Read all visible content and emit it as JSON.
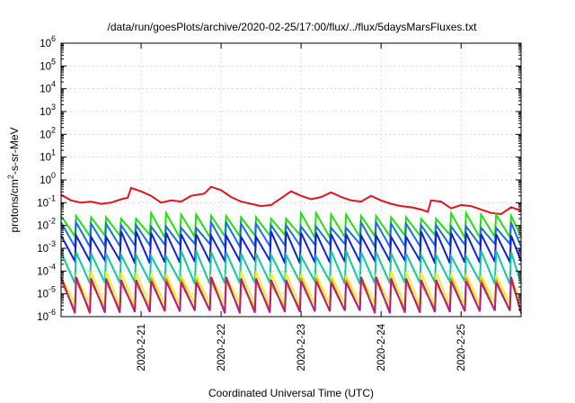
{
  "chart_data": {
    "type": "line",
    "title": "/data/run/goesPlots/archive/2020-02-25/17:00/flux/../flux/5daysMarsFluxes.txt",
    "xlabel": "Coordinated Universal Time (UTC)",
    "ylabel_parts": [
      "protons/cm",
      "2",
      "-s-sr-MeV"
    ],
    "y_scale": "log",
    "ylim": [
      1e-06,
      1000000.0
    ],
    "y_ticks": [
      {
        "base": "10",
        "exp": "-6"
      },
      {
        "base": "10",
        "exp": "-5"
      },
      {
        "base": "10",
        "exp": "-4"
      },
      {
        "base": "10",
        "exp": "-3"
      },
      {
        "base": "10",
        "exp": "-2"
      },
      {
        "base": "10",
        "exp": "-1"
      },
      {
        "base": "10",
        "exp": "0"
      },
      {
        "base": "10",
        "exp": "1"
      },
      {
        "base": "10",
        "exp": "2"
      },
      {
        "base": "10",
        "exp": "3"
      },
      {
        "base": "10",
        "exp": "4"
      },
      {
        "base": "10",
        "exp": "5"
      },
      {
        "base": "10",
        "exp": "6"
      }
    ],
    "x_range_days": [
      "2020-02-20T00:00",
      "2020-02-25T18:00"
    ],
    "x_ticks": [
      "2020-2-21",
      "2020-2-22",
      "2020-2-23",
      "2020-2-24",
      "2020-2-25"
    ],
    "grid": true,
    "legend": "none",
    "series": [
      {
        "color": "#e8101a",
        "sawtooth_period_h": 12,
        "x_start_h": 0,
        "points": [
          [
            0,
            -0.65
          ],
          [
            3,
            -0.9
          ],
          [
            6,
            -1.0
          ],
          [
            9,
            -0.95
          ],
          [
            12,
            -1.05
          ],
          [
            15,
            -1.0
          ],
          [
            18,
            -0.85
          ],
          [
            20,
            -0.78
          ],
          [
            21,
            -0.35
          ],
          [
            24,
            -0.5
          ],
          [
            27,
            -0.7
          ],
          [
            30,
            -1.0
          ],
          [
            33,
            -0.9
          ],
          [
            36,
            -0.95
          ],
          [
            39,
            -0.7
          ],
          [
            43,
            -0.6
          ],
          [
            45,
            -0.3
          ],
          [
            48,
            -0.45
          ],
          [
            51,
            -0.75
          ],
          [
            54,
            -0.95
          ],
          [
            57,
            -1.05
          ],
          [
            60,
            -1.15
          ],
          [
            63,
            -1.1
          ],
          [
            66,
            -0.8
          ],
          [
            69,
            -0.5
          ],
          [
            72,
            -0.7
          ],
          [
            75,
            -0.85
          ],
          [
            78,
            -0.75
          ],
          [
            81,
            -0.55
          ],
          [
            84,
            -0.75
          ],
          [
            87,
            -0.9
          ],
          [
            90,
            -0.95
          ],
          [
            93,
            -0.7
          ],
          [
            96,
            -0.9
          ],
          [
            99,
            -1.05
          ],
          [
            102,
            -1.15
          ],
          [
            105,
            -1.2
          ],
          [
            108,
            -1.3
          ],
          [
            110,
            -1.4
          ],
          [
            111,
            -0.9
          ],
          [
            114,
            -0.95
          ],
          [
            117,
            -1.25
          ],
          [
            120,
            -1.1
          ],
          [
            123,
            -1.15
          ],
          [
            126,
            -1.3
          ],
          [
            129,
            -1.45
          ],
          [
            132,
            -1.5
          ],
          [
            135,
            -1.2
          ],
          [
            138,
            -1.35
          ]
        ]
      },
      {
        "color": "#22e010",
        "base": -2.25,
        "amp": 0.55,
        "period_h": 4.5
      },
      {
        "color": "#1a6ee0",
        "base": -2.65,
        "amp": 0.55,
        "period_h": 4.5
      },
      {
        "color": "#1020d8",
        "base": -3.3,
        "amp": 0.8,
        "period_h": 4.5
      },
      {
        "color": "#10c8a0",
        "base": -4.2,
        "amp": 0.85,
        "period_h": 4.5
      },
      {
        "color": "#f0f020",
        "base": -5.15,
        "amp": 0.9,
        "period_h": 4.5
      },
      {
        "color": "#e89018",
        "base": -5.4,
        "amp": 0.85,
        "period_h": 4.5
      },
      {
        "color": "#b02080",
        "base": -5.45,
        "amp": 0.95,
        "period_h": 4.5
      }
    ]
  }
}
